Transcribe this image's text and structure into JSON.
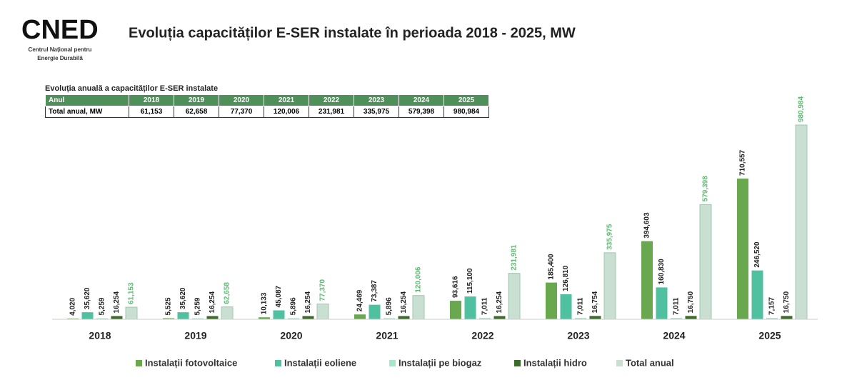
{
  "header": {
    "logo": "CNED",
    "org_line1": "Centrul Național pentru",
    "org_line2": "Energie Durabilă"
  },
  "table": {
    "title": "Evoluția anuală a capacităților E-SER instalate",
    "header": [
      "Anul",
      "2018",
      "2019",
      "2020",
      "2021",
      "2022",
      "2023",
      "2024",
      "2025"
    ],
    "rows": [
      [
        "Total anual, MW",
        "61,153",
        "62,658",
        "77,370",
        "120,006",
        "231,981",
        "335,975",
        "579,398",
        "980,984"
      ]
    ]
  },
  "chart_data": {
    "type": "bar",
    "title": "Evoluția capacităților E-SER instalate în perioada 2018 - 2025, MW",
    "categories": [
      "2018",
      "2019",
      "2020",
      "2021",
      "2022",
      "2023",
      "2024",
      "2025"
    ],
    "series": [
      {
        "name": "Instalații fotovoltaice",
        "color": "#6aa84f",
        "values": [
          4020,
          5525,
          10133,
          24469,
          93616,
          185400,
          394603,
          710557
        ],
        "value_labels": [
          "4,020",
          "5,525",
          "10,133",
          "24,469",
          "93,616",
          "185,400",
          "394,603",
          "710,557"
        ]
      },
      {
        "name": "Instalații eoliene",
        "color": "#4fc1a0",
        "values": [
          35620,
          35620,
          45087,
          73387,
          115100,
          126810,
          160830,
          246520
        ],
        "value_labels": [
          "35,620",
          "35,620",
          "45,087",
          "73,387",
          "115,100",
          "126,810",
          "160,830",
          "246,520"
        ]
      },
      {
        "name": "Instalații pe biogaz",
        "color": "#a8e6c9",
        "values": [
          5259,
          5259,
          5896,
          5896,
          7011,
          7011,
          7011,
          7157
        ],
        "value_labels": [
          "5,259",
          "5,259",
          "5,896",
          "5,896",
          "7,011",
          "7,011",
          "7,011",
          "7,157"
        ]
      },
      {
        "name": "Instalații hidro",
        "color": "#3d6b2c",
        "values": [
          16254,
          16254,
          16254,
          16254,
          16254,
          16754,
          16750,
          16750
        ],
        "value_labels": [
          "16,254",
          "16,254",
          "16,254",
          "16,254",
          "16,254",
          "16,754",
          "16,750",
          "16,750"
        ]
      },
      {
        "name": "Total anual",
        "color": "#c9dfd2",
        "values": [
          61153,
          62658,
          77370,
          120006,
          231981,
          335975,
          579398,
          980984
        ],
        "value_labels": [
          "61,153",
          "62,658",
          "77,370",
          "120,006",
          "231,981",
          "335,975",
          "579,398",
          "980,984"
        ]
      }
    ]
  }
}
